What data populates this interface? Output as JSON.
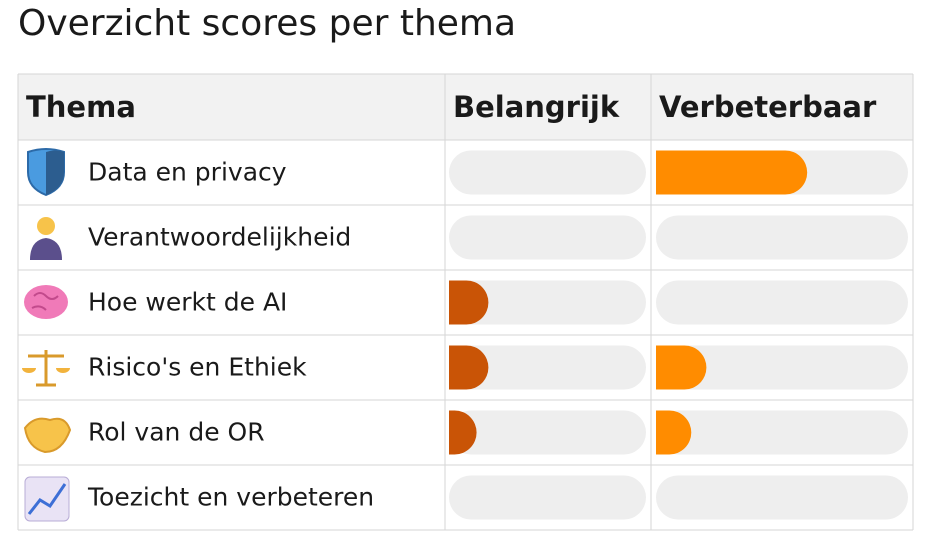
{
  "title": "Overzicht scores per thema",
  "table": {
    "headers": [
      "Thema",
      "Belangrijk",
      "Verbeterbaar"
    ],
    "xlim": [
      0,
      100
    ],
    "colors": [
      "#c95406",
      "#ff8c00"
    ],
    "rows": [
      {
        "label": "Data en privacy",
        "values": [
          0,
          60
        ]
      },
      {
        "label": "Verantwoordelijkheid",
        "values": [
          0,
          0
        ]
      },
      {
        "label": "Hoe werkt de AI",
        "values": [
          20,
          0
        ]
      },
      {
        "label": "Risico's en Ethiek",
        "values": [
          20,
          20
        ]
      },
      {
        "label": "Rol van de OR",
        "values": [
          14,
          14
        ]
      },
      {
        "label": "Toezicht en verbeteren",
        "values": [
          0,
          0
        ]
      }
    ]
  }
}
